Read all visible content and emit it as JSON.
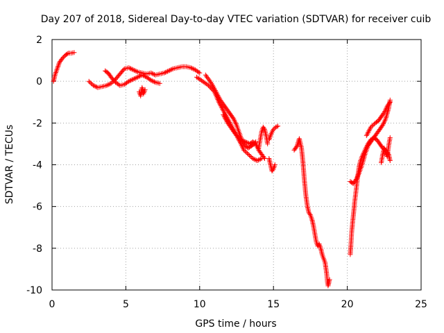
{
  "chart_data": {
    "type": "scatter",
    "title": "Day 207 of 2018, Sidereal Day-to-day VTEC variation (SDTVAR) for receiver cuib",
    "xlabel": "GPS time / hours",
    "ylabel": "SDTVAR / TECUs",
    "xlim": [
      0,
      25
    ],
    "ylim": [
      -10,
      2
    ],
    "xticks": [
      "0",
      "5",
      "10",
      "15",
      "20",
      "25"
    ],
    "yticks": [
      "-10",
      "-8",
      "-6",
      "-4",
      "-2",
      "0",
      "2"
    ],
    "grid": true,
    "marker": "+",
    "series": [
      {
        "name": "SDTVAR",
        "color": "#ff0000",
        "tracks": [
          [
            [
              0.1,
              0.0
            ],
            [
              0.2,
              0.3
            ],
            [
              0.35,
              0.6
            ],
            [
              0.5,
              0.9
            ],
            [
              0.7,
              1.1
            ],
            [
              0.9,
              1.25
            ],
            [
              1.1,
              1.35
            ],
            [
              1.3,
              1.35
            ],
            [
              1.5,
              1.38
            ]
          ],
          [
            [
              2.5,
              0.0
            ],
            [
              2.8,
              -0.2
            ],
            [
              3.1,
              -0.3
            ],
            [
              3.4,
              -0.25
            ],
            [
              3.7,
              -0.2
            ],
            [
              4.0,
              -0.1
            ],
            [
              4.3,
              0.1
            ],
            [
              4.6,
              0.35
            ],
            [
              4.9,
              0.6
            ],
            [
              5.2,
              0.65
            ],
            [
              5.5,
              0.55
            ],
            [
              5.8,
              0.45
            ],
            [
              6.1,
              0.4
            ],
            [
              6.4,
              0.35
            ],
            [
              6.7,
              0.4
            ],
            [
              7.0,
              0.3
            ],
            [
              7.3,
              0.35
            ],
            [
              7.6,
              0.4
            ],
            [
              7.9,
              0.5
            ],
            [
              8.2,
              0.6
            ],
            [
              8.5,
              0.65
            ],
            [
              8.8,
              0.7
            ],
            [
              9.1,
              0.7
            ],
            [
              9.4,
              0.65
            ],
            [
              9.7,
              0.55
            ],
            [
              10.0,
              0.4
            ]
          ],
          [
            [
              3.6,
              0.5
            ],
            [
              3.8,
              0.4
            ],
            [
              4.0,
              0.2
            ],
            [
              4.3,
              -0.05
            ],
            [
              4.6,
              -0.2
            ],
            [
              4.9,
              -0.15
            ],
            [
              5.2,
              0.0
            ],
            [
              5.5,
              0.1
            ],
            [
              5.8,
              0.2
            ],
            [
              6.1,
              0.3
            ],
            [
              6.4,
              0.2
            ],
            [
              6.7,
              0.05
            ],
            [
              7.0,
              -0.05
            ],
            [
              7.3,
              -0.1
            ]
          ],
          [
            [
              5.9,
              -0.5
            ],
            [
              6.0,
              -0.7
            ],
            [
              6.1,
              -0.3
            ],
            [
              6.2,
              -0.6
            ],
            [
              6.3,
              -0.4
            ]
          ],
          [
            [
              9.8,
              0.2
            ],
            [
              10.2,
              0.0
            ],
            [
              10.6,
              -0.2
            ],
            [
              11.0,
              -0.5
            ],
            [
              11.3,
              -1.0
            ],
            [
              11.6,
              -1.4
            ],
            [
              11.9,
              -1.8
            ],
            [
              12.2,
              -2.2
            ],
            [
              12.5,
              -2.6
            ],
            [
              12.8,
              -3.0
            ],
            [
              13.0,
              -3.3
            ],
            [
              13.3,
              -3.5
            ],
            [
              13.6,
              -3.7
            ],
            [
              13.9,
              -3.8
            ],
            [
              14.2,
              -3.7
            ]
          ],
          [
            [
              10.4,
              0.3
            ],
            [
              10.8,
              -0.1
            ],
            [
              11.1,
              -0.5
            ],
            [
              11.4,
              -0.9
            ],
            [
              11.7,
              -1.2
            ],
            [
              12.0,
              -1.5
            ],
            [
              12.3,
              -1.8
            ],
            [
              12.5,
              -2.1
            ],
            [
              12.7,
              -2.5
            ],
            [
              12.9,
              -2.9
            ],
            [
              13.1,
              -3.1
            ],
            [
              13.3,
              -3.2
            ],
            [
              13.5,
              -3.1
            ],
            [
              13.7,
              -3.0
            ],
            [
              13.8,
              -2.9
            ]
          ],
          [
            [
              11.6,
              -1.6
            ],
            [
              11.9,
              -2.0
            ],
            [
              12.2,
              -2.3
            ],
            [
              12.5,
              -2.6
            ],
            [
              12.8,
              -2.8
            ],
            [
              13.1,
              -2.9
            ],
            [
              13.4,
              -3.0
            ],
            [
              13.6,
              -2.9
            ],
            [
              13.8,
              -3.0
            ],
            [
              14.0,
              -3.3
            ],
            [
              14.2,
              -3.5
            ],
            [
              14.4,
              -3.7
            ]
          ],
          [
            [
              14.0,
              -3.2
            ],
            [
              14.1,
              -2.8
            ],
            [
              14.2,
              -2.4
            ],
            [
              14.3,
              -2.2
            ],
            [
              14.4,
              -2.3
            ],
            [
              14.5,
              -2.6
            ],
            [
              14.6,
              -3.0
            ]
          ],
          [
            [
              14.7,
              -3.7
            ],
            [
              14.8,
              -4.0
            ],
            [
              14.9,
              -4.3
            ],
            [
              15.0,
              -4.2
            ],
            [
              15.1,
              -4.0
            ]
          ],
          [
            [
              14.7,
              -2.8
            ],
            [
              14.85,
              -2.5
            ],
            [
              15.0,
              -2.3
            ],
            [
              15.15,
              -2.2
            ],
            [
              15.3,
              -2.15
            ]
          ],
          [
            [
              16.4,
              -3.3
            ],
            [
              16.6,
              -3.1
            ],
            [
              16.75,
              -2.75
            ],
            [
              16.9,
              -3.2
            ],
            [
              17.0,
              -3.9
            ],
            [
              17.1,
              -4.8
            ],
            [
              17.2,
              -5.5
            ],
            [
              17.3,
              -6.0
            ],
            [
              17.4,
              -6.3
            ],
            [
              17.5,
              -6.4
            ],
            [
              17.6,
              -6.6
            ],
            [
              17.7,
              -6.9
            ],
            [
              17.8,
              -7.3
            ],
            [
              17.9,
              -7.7
            ],
            [
              18.0,
              -7.9
            ],
            [
              18.1,
              -7.8
            ],
            [
              18.2,
              -8.0
            ],
            [
              18.3,
              -8.3
            ],
            [
              18.4,
              -8.5
            ],
            [
              18.5,
              -8.7
            ],
            [
              18.6,
              -9.2
            ],
            [
              18.65,
              -9.6
            ],
            [
              18.7,
              -9.8
            ],
            [
              18.8,
              -9.5
            ]
          ],
          [
            [
              20.2,
              -8.3
            ],
            [
              20.25,
              -7.8
            ],
            [
              20.3,
              -7.2
            ],
            [
              20.4,
              -6.5
            ],
            [
              20.5,
              -5.8
            ],
            [
              20.6,
              -5.2
            ],
            [
              20.7,
              -4.6
            ],
            [
              20.8,
              -4.1
            ],
            [
              20.9,
              -3.8
            ],
            [
              21.0,
              -3.6
            ],
            [
              21.2,
              -3.3
            ],
            [
              21.4,
              -3.0
            ],
            [
              21.6,
              -2.8
            ],
            [
              21.8,
              -2.7
            ],
            [
              22.0,
              -2.5
            ],
            [
              22.2,
              -2.3
            ],
            [
              22.4,
              -2.1
            ],
            [
              22.6,
              -1.8
            ],
            [
              22.8,
              -1.3
            ],
            [
              22.9,
              -0.9
            ]
          ],
          [
            [
              20.2,
              -4.8
            ],
            [
              20.4,
              -4.9
            ],
            [
              20.6,
              -4.7
            ],
            [
              20.8,
              -4.4
            ],
            [
              21.0,
              -4.0
            ],
            [
              21.2,
              -3.5
            ],
            [
              21.4,
              -3.1
            ],
            [
              21.6,
              -2.9
            ],
            [
              21.8,
              -2.7
            ],
            [
              22.0,
              -2.8
            ],
            [
              22.2,
              -3.0
            ],
            [
              22.4,
              -3.2
            ],
            [
              22.6,
              -3.3
            ],
            [
              22.8,
              -3.5
            ],
            [
              22.9,
              -3.8
            ]
          ],
          [
            [
              21.3,
              -2.6
            ],
            [
              21.6,
              -2.2
            ],
            [
              21.9,
              -2.0
            ],
            [
              22.1,
              -1.9
            ],
            [
              22.3,
              -1.7
            ],
            [
              22.5,
              -1.5
            ],
            [
              22.7,
              -1.2
            ],
            [
              22.9,
              -1.0
            ]
          ],
          [
            [
              22.3,
              -3.9
            ],
            [
              22.4,
              -3.5
            ],
            [
              22.5,
              -3.2
            ],
            [
              22.6,
              -3.4
            ],
            [
              22.7,
              -3.6
            ],
            [
              22.8,
              -3.1
            ],
            [
              22.9,
              -2.7
            ]
          ]
        ]
      }
    ]
  }
}
